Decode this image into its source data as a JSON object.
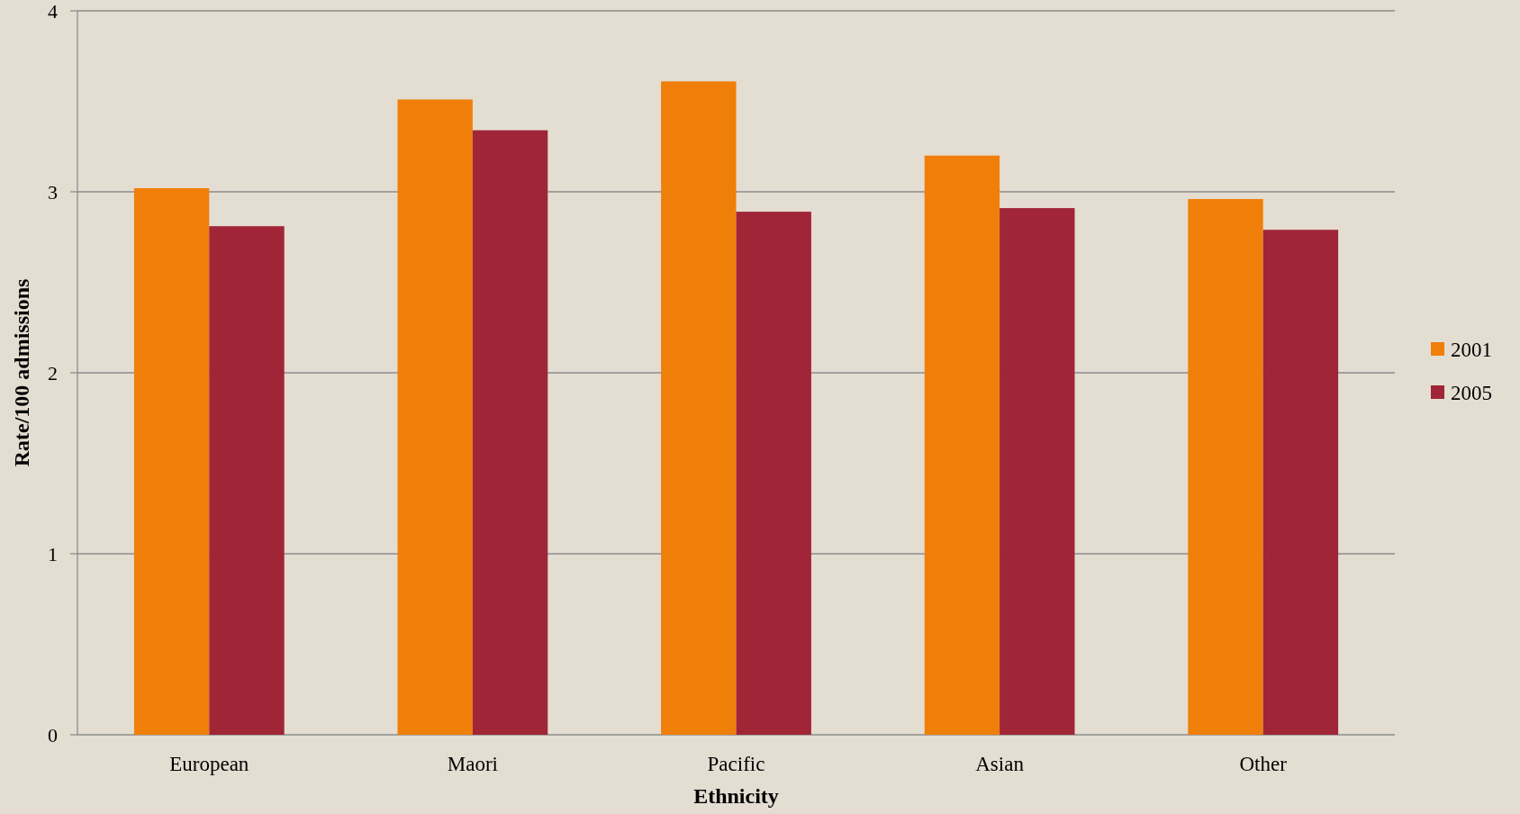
{
  "chart_data": {
    "type": "bar",
    "xlabel": "Ethnicity",
    "ylabel": "Rate/100 admissions",
    "categories": [
      "European",
      "Maori",
      "Pacific",
      "Asian",
      "Other"
    ],
    "series": [
      {
        "name": "2001",
        "color": "#f07f0a",
        "values": [
          3.02,
          3.51,
          3.61,
          3.2,
          2.96
        ]
      },
      {
        "name": "2005",
        "color": "#a02637",
        "values": [
          2.81,
          3.34,
          2.89,
          2.91,
          2.79
        ]
      }
    ],
    "ylim": [
      0,
      4
    ],
    "yticks": [
      0,
      1,
      2,
      3,
      4
    ],
    "grid": "y",
    "legend": "right"
  }
}
